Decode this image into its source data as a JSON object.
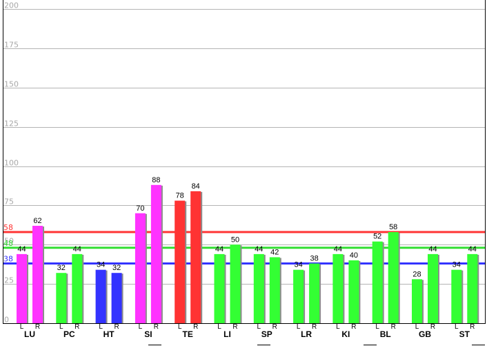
{
  "chart_data": {
    "type": "bar",
    "ylim": [
      0,
      200
    ],
    "yticks": [
      "0",
      "25",
      "50",
      "75",
      "100",
      "125",
      "150",
      "175",
      "200"
    ],
    "grid": true,
    "categories": [
      "LU",
      "PC",
      "HT",
      "SI",
      "TE",
      "LI",
      "SP",
      "LR",
      "KI",
      "BL",
      "GB",
      "ST"
    ],
    "side_labels": [
      "L",
      "R"
    ],
    "bars": [
      {
        "category": "LU",
        "L": 44,
        "R": 62,
        "L_color": "#ff33ff",
        "R_color": "#ff33ff"
      },
      {
        "category": "PC",
        "L": 32,
        "R": 44,
        "L_color": "#33ff33",
        "R_color": "#33ff33"
      },
      {
        "category": "HT",
        "L": 34,
        "R": 32,
        "L_color": "#3333ff",
        "R_color": "#3333ff"
      },
      {
        "category": "SI",
        "L": 70,
        "R": 88,
        "L_color": "#ff33ff",
        "R_color": "#ff33ff"
      },
      {
        "category": "TE",
        "L": 78,
        "R": 84,
        "L_color": "#ff3333",
        "R_color": "#ff3333"
      },
      {
        "category": "LI",
        "L": 44,
        "R": 50,
        "L_color": "#33ff33",
        "R_color": "#33ff33"
      },
      {
        "category": "SP",
        "L": 44,
        "R": 42,
        "L_color": "#33ff33",
        "R_color": "#33ff33"
      },
      {
        "category": "LR",
        "L": 34,
        "R": 38,
        "L_color": "#33ff33",
        "R_color": "#33ff33"
      },
      {
        "category": "KI",
        "L": 44,
        "R": 40,
        "L_color": "#33ff33",
        "R_color": "#33ff33"
      },
      {
        "category": "BL",
        "L": 52,
        "R": 58,
        "L_color": "#33ff33",
        "R_color": "#33ff33"
      },
      {
        "category": "GB",
        "L": 28,
        "R": 44,
        "L_color": "#33ff33",
        "R_color": "#33ff33"
      },
      {
        "category": "ST",
        "L": 34,
        "R": 44,
        "L_color": "#33ff33",
        "R_color": "#33ff33"
      }
    ],
    "reference_lines": [
      {
        "value": 58,
        "label": "58",
        "color": "#ff3333"
      },
      {
        "value": 48,
        "label": "48",
        "color": "#33dd33"
      },
      {
        "value": 38,
        "label": "38",
        "color": "#3333ff"
      }
    ]
  }
}
